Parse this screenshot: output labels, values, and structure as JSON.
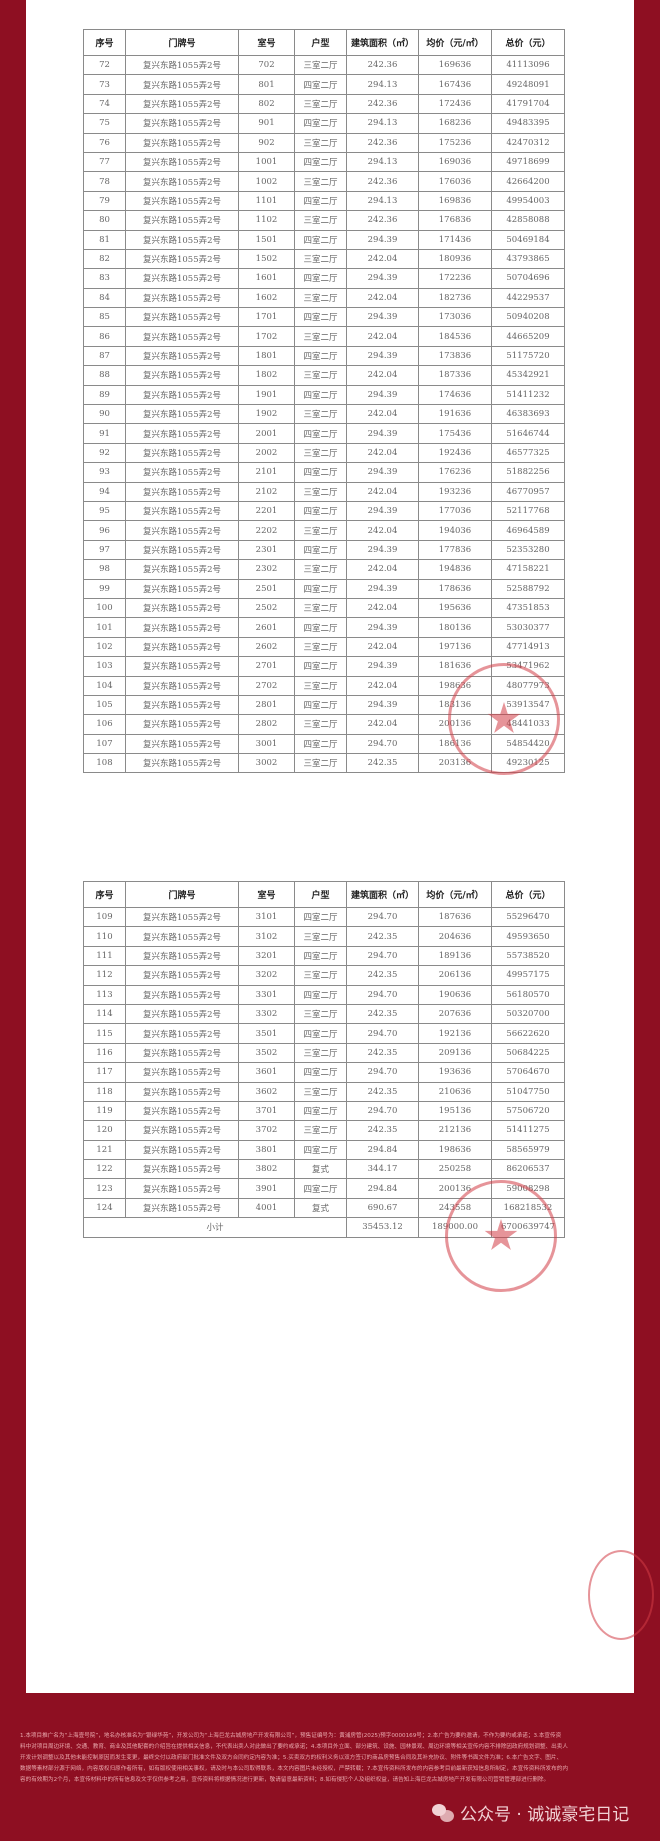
{
  "headers": [
    "序号",
    "门牌号",
    "室号",
    "户型",
    "建筑面积（㎡）",
    "均价（元/㎡）",
    "总价（元）"
  ],
  "table1": [
    [
      "72",
      "复兴东路1055弄2号",
      "702",
      "三室二厅",
      "242.36",
      "169636",
      "41113096"
    ],
    [
      "73",
      "复兴东路1055弄2号",
      "801",
      "四室二厅",
      "294.13",
      "167436",
      "49248091"
    ],
    [
      "74",
      "复兴东路1055弄2号",
      "802",
      "三室二厅",
      "242.36",
      "172436",
      "41791704"
    ],
    [
      "75",
      "复兴东路1055弄2号",
      "901",
      "四室二厅",
      "294.13",
      "168236",
      "49483395"
    ],
    [
      "76",
      "复兴东路1055弄2号",
      "902",
      "三室二厅",
      "242.36",
      "175236",
      "42470312"
    ],
    [
      "77",
      "复兴东路1055弄2号",
      "1001",
      "四室二厅",
      "294.13",
      "169036",
      "49718699"
    ],
    [
      "78",
      "复兴东路1055弄2号",
      "1002",
      "三室二厅",
      "242.36",
      "176036",
      "42664200"
    ],
    [
      "79",
      "复兴东路1055弄2号",
      "1101",
      "四室二厅",
      "294.13",
      "169836",
      "49954003"
    ],
    [
      "80",
      "复兴东路1055弄2号",
      "1102",
      "三室二厅",
      "242.36",
      "176836",
      "42858088"
    ],
    [
      "81",
      "复兴东路1055弄2号",
      "1501",
      "四室二厅",
      "294.39",
      "171436",
      "50469184"
    ],
    [
      "82",
      "复兴东路1055弄2号",
      "1502",
      "三室二厅",
      "242.04",
      "180936",
      "43793865"
    ],
    [
      "83",
      "复兴东路1055弄2号",
      "1601",
      "四室二厅",
      "294.39",
      "172236",
      "50704696"
    ],
    [
      "84",
      "复兴东路1055弄2号",
      "1602",
      "三室二厅",
      "242.04",
      "182736",
      "44229537"
    ],
    [
      "85",
      "复兴东路1055弄2号",
      "1701",
      "四室二厅",
      "294.39",
      "173036",
      "50940208"
    ],
    [
      "86",
      "复兴东路1055弄2号",
      "1702",
      "三室二厅",
      "242.04",
      "184536",
      "44665209"
    ],
    [
      "87",
      "复兴东路1055弄2号",
      "1801",
      "四室二厅",
      "294.39",
      "173836",
      "51175720"
    ],
    [
      "88",
      "复兴东路1055弄2号",
      "1802",
      "三室二厅",
      "242.04",
      "187336",
      "45342921"
    ],
    [
      "89",
      "复兴东路1055弄2号",
      "1901",
      "四室二厅",
      "294.39",
      "174636",
      "51411232"
    ],
    [
      "90",
      "复兴东路1055弄2号",
      "1902",
      "三室二厅",
      "242.04",
      "191636",
      "46383693"
    ],
    [
      "91",
      "复兴东路1055弄2号",
      "2001",
      "四室二厅",
      "294.39",
      "175436",
      "51646744"
    ],
    [
      "92",
      "复兴东路1055弄2号",
      "2002",
      "三室二厅",
      "242.04",
      "192436",
      "46577325"
    ],
    [
      "93",
      "复兴东路1055弄2号",
      "2101",
      "四室二厅",
      "294.39",
      "176236",
      "51882256"
    ],
    [
      "94",
      "复兴东路1055弄2号",
      "2102",
      "三室二厅",
      "242.04",
      "193236",
      "46770957"
    ],
    [
      "95",
      "复兴东路1055弄2号",
      "2201",
      "四室二厅",
      "294.39",
      "177036",
      "52117768"
    ],
    [
      "96",
      "复兴东路1055弄2号",
      "2202",
      "三室二厅",
      "242.04",
      "194036",
      "46964589"
    ],
    [
      "97",
      "复兴东路1055弄2号",
      "2301",
      "四室二厅",
      "294.39",
      "177836",
      "52353280"
    ],
    [
      "98",
      "复兴东路1055弄2号",
      "2302",
      "三室二厅",
      "242.04",
      "194836",
      "47158221"
    ],
    [
      "99",
      "复兴东路1055弄2号",
      "2501",
      "四室二厅",
      "294.39",
      "178636",
      "52588792"
    ],
    [
      "100",
      "复兴东路1055弄2号",
      "2502",
      "三室二厅",
      "242.04",
      "195636",
      "47351853"
    ],
    [
      "101",
      "复兴东路1055弄2号",
      "2601",
      "四室二厅",
      "294.39",
      "180136",
      "53030377"
    ],
    [
      "102",
      "复兴东路1055弄2号",
      "2602",
      "三室二厅",
      "242.04",
      "197136",
      "47714913"
    ],
    [
      "103",
      "复兴东路1055弄2号",
      "2701",
      "四室二厅",
      "294.39",
      "181636",
      "53471962"
    ],
    [
      "104",
      "复兴东路1055弄2号",
      "2702",
      "三室二厅",
      "242.04",
      "198636",
      "48077973"
    ],
    [
      "105",
      "复兴东路1055弄2号",
      "2801",
      "四室二厅",
      "294.39",
      "183136",
      "53913547"
    ],
    [
      "106",
      "复兴东路1055弄2号",
      "2802",
      "三室二厅",
      "242.04",
      "200136",
      "48441033"
    ],
    [
      "107",
      "复兴东路1055弄2号",
      "3001",
      "四室二厅",
      "294.70",
      "186136",
      "54854420"
    ],
    [
      "108",
      "复兴东路1055弄2号",
      "3002",
      "三室二厅",
      "242.35",
      "203136",
      "49230125"
    ]
  ],
  "table2": [
    [
      "109",
      "复兴东路1055弄2号",
      "3101",
      "四室二厅",
      "294.70",
      "187636",
      "55296470"
    ],
    [
      "110",
      "复兴东路1055弄2号",
      "3102",
      "三室二厅",
      "242.35",
      "204636",
      "49593650"
    ],
    [
      "111",
      "复兴东路1055弄2号",
      "3201",
      "四室二厅",
      "294.70",
      "189136",
      "55738520"
    ],
    [
      "112",
      "复兴东路1055弄2号",
      "3202",
      "三室二厅",
      "242.35",
      "206136",
      "49957175"
    ],
    [
      "113",
      "复兴东路1055弄2号",
      "3301",
      "四室二厅",
      "294.70",
      "190636",
      "56180570"
    ],
    [
      "114",
      "复兴东路1055弄2号",
      "3302",
      "三室二厅",
      "242.35",
      "207636",
      "50320700"
    ],
    [
      "115",
      "复兴东路1055弄2号",
      "3501",
      "四室二厅",
      "294.70",
      "192136",
      "56622620"
    ],
    [
      "116",
      "复兴东路1055弄2号",
      "3502",
      "三室二厅",
      "242.35",
      "209136",
      "50684225"
    ],
    [
      "117",
      "复兴东路1055弄2号",
      "3601",
      "四室二厅",
      "294.70",
      "193636",
      "57064670"
    ],
    [
      "118",
      "复兴东路1055弄2号",
      "3602",
      "三室二厅",
      "242.35",
      "210636",
      "51047750"
    ],
    [
      "119",
      "复兴东路1055弄2号",
      "3701",
      "四室二厅",
      "294.70",
      "195136",
      "57506720"
    ],
    [
      "120",
      "复兴东路1055弄2号",
      "3702",
      "三室二厅",
      "242.35",
      "212136",
      "51411275"
    ],
    [
      "121",
      "复兴东路1055弄2号",
      "3801",
      "四室二厅",
      "294.84",
      "198636",
      "58565979"
    ],
    [
      "122",
      "复兴东路1055弄2号",
      "3802",
      "复式",
      "344.17",
      "250258",
      "86206537"
    ],
    [
      "123",
      "复兴东路1055弄2号",
      "3901",
      "四室二厅",
      "294.84",
      "200136",
      "59008298"
    ],
    [
      "124",
      "复兴东路1055弄2号",
      "4001",
      "复式",
      "690.67",
      "243558",
      "168218532"
    ]
  ],
  "subtotal": {
    "label": "小计",
    "area": "35453.12",
    "avg_price": "189000.00",
    "total": "6700639747"
  },
  "footer_lines": [
    "1.本项目推广名为“上海壹号院”，地名办核准名为“银绿华苑”，开发公司为“上海巨龙古城房地产开发有限公司”，预售证编号为：黄浦房管(2025)预字0000169号；2.本广告为要约邀请，不作为要约或承诺；3.本宣传资",
    "料中对项目周边环境、交通、教育、商业及其他配套的介绍旨在提供相关信息，不代表出卖人对此做出了要约或承诺；4.本项目外立面、部分建筑、设施、园林景观、周边环境等相关宣传内容不排除因政府规划调整、出卖人",
    "开发计划调整以及其他未能控制原因而发生变更，最终交付以政府部门批准文件及双方合同约定内容为准；5.买卖双方的权利义务以双方签订的商品房预售合同及其补充协议、附件等书面文件为准；6.本广告文字、图片、",
    "数据等素材部分源于网络，内容版权归原作者所有，如有版权使用相关事权，请及时与本公司取得联系，本文内容图片未经授权，严禁转载；7.本宣传资料所发布的内容参考目前最新获知信息所制定，本宣传资料所发布的内",
    "容的有效期为2个月，本宣传材料中的所有信息及文字仅供参考之用，宣传资料将根据情况进行更新，敬请留意最新资料；8.如有侵犯个人及组织权益，请告知上海巨龙古城房地产开发有限公司营销管理部进行删除。"
  ],
  "watermark": {
    "text": "公众号 · 诚诚豪宅日记",
    "icon": "wechat-icon"
  },
  "colors": {
    "background": "#8e0f22",
    "stamp": "#d23c46"
  }
}
